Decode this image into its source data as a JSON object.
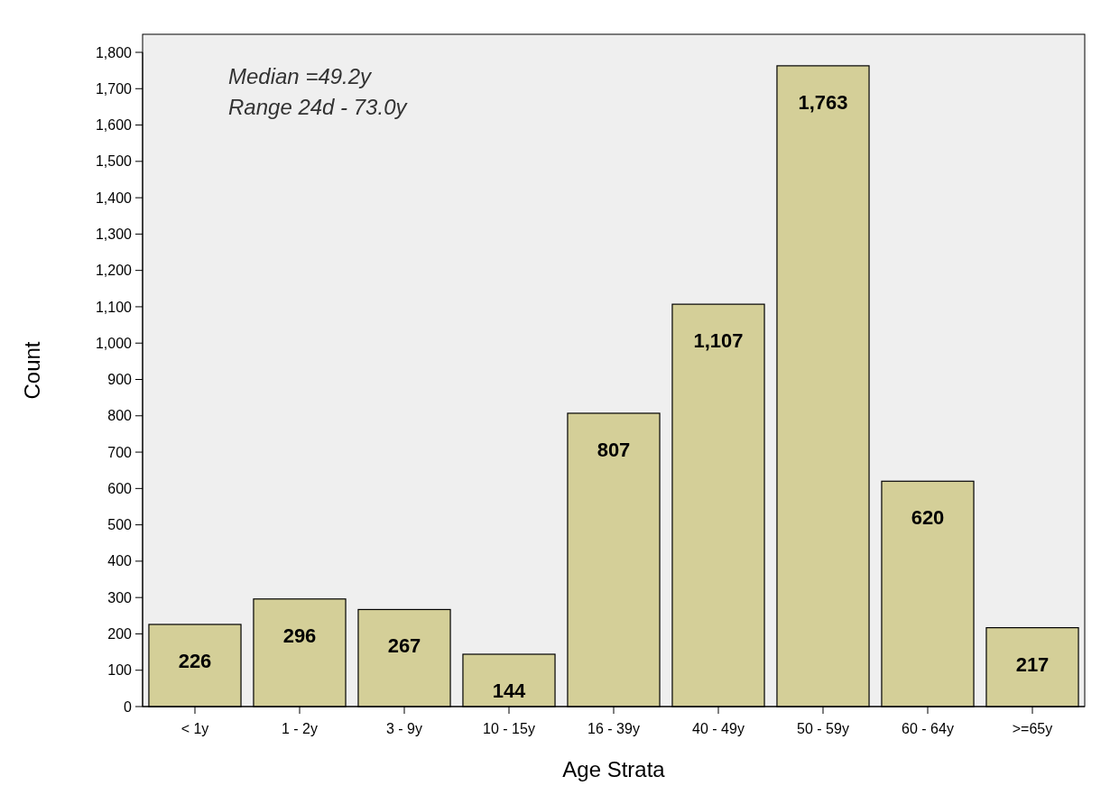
{
  "chart_data": {
    "type": "bar",
    "xlabel": "Age Strata",
    "ylabel": "Count",
    "categories": [
      "< 1y",
      "1 - 2y",
      "3 - 9y",
      "10 - 15y",
      "16 - 39y",
      "40 - 49y",
      "50 - 59y",
      "60 - 64y",
      ">=65y"
    ],
    "values": [
      226,
      296,
      267,
      144,
      807,
      1107,
      1763,
      620,
      217
    ],
    "value_labels": [
      "226",
      "296",
      "267",
      "144",
      "807",
      "1,107",
      "1,763",
      "620",
      "217"
    ],
    "color": "#d4cf98",
    "ylim": [
      0,
      1800
    ],
    "yticks": [
      0,
      100,
      200,
      300,
      400,
      500,
      600,
      700,
      800,
      900,
      {
        "value": 1000,
        "label": "1,000"
      },
      {
        "value": 1100,
        "label": "1,100"
      },
      {
        "value": 1200,
        "label": "1,200"
      },
      {
        "value": 1300,
        "label": "1,300"
      },
      {
        "value": 1400,
        "label": "1,400"
      },
      {
        "value": 1500,
        "label": "1,500"
      },
      {
        "value": 1600,
        "label": "1,600"
      },
      {
        "value": 1700,
        "label": "1,700"
      },
      {
        "value": 1800,
        "label": "1,800"
      }
    ],
    "annotations": [
      "Median =49.2y",
      "Range 24d - 73.0y"
    ]
  }
}
